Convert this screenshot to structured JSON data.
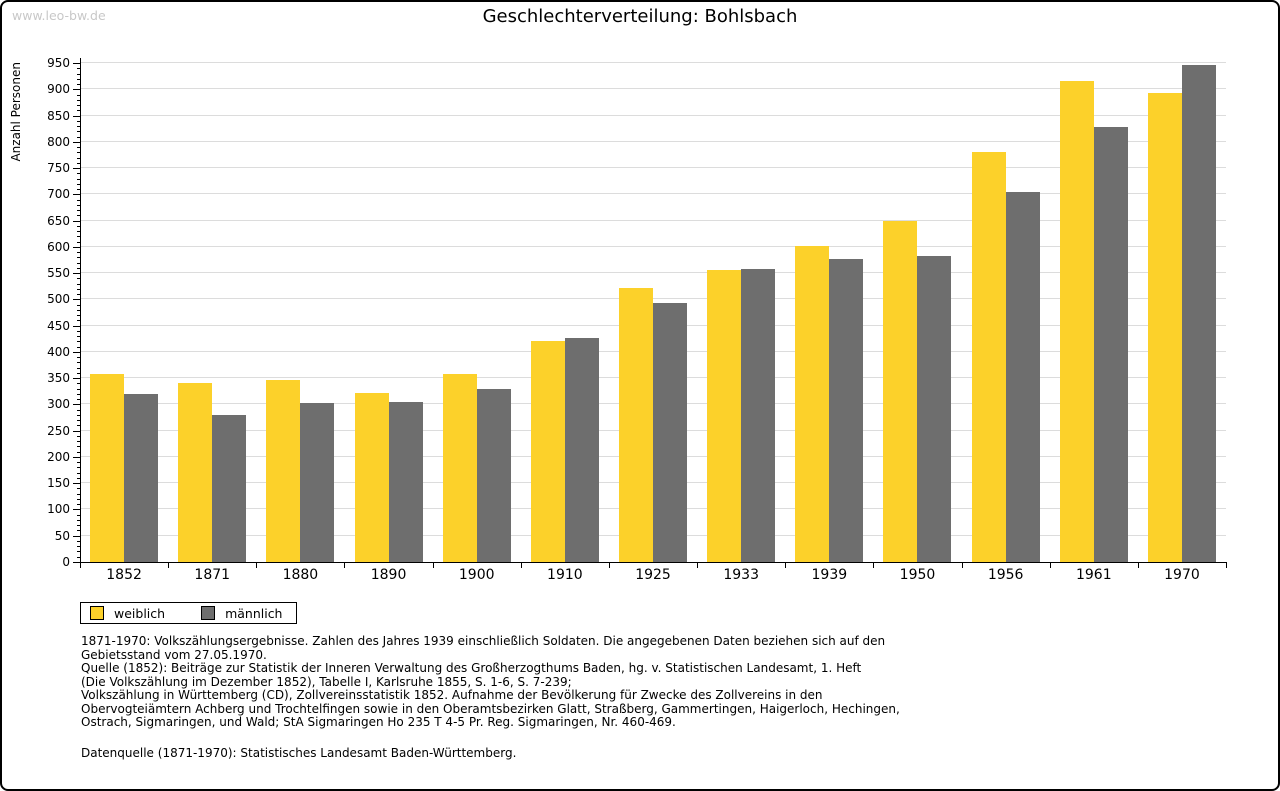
{
  "watermark": "www.leo-bw.de",
  "header": {
    "title": "Geschlechterverteilung: Bohlsbach"
  },
  "colors": {
    "weiblich": "#fcd12a",
    "maennlich": "#6e6e6e",
    "gridline": "#dcdcdc",
    "axis": "#000000",
    "watermark": "#c8c8c8"
  },
  "chart_data": {
    "type": "bar",
    "title": "Geschlechterverteilung: Bohlsbach",
    "xlabel": "",
    "ylabel": "Anzahl Personen",
    "ylim": [
      0,
      950
    ],
    "ytick_step": 50,
    "minor_tick_step": 10,
    "grid": true,
    "legend_position": "bottom-left",
    "categories": [
      "1852",
      "1871",
      "1880",
      "1890",
      "1900",
      "1910",
      "1925",
      "1933",
      "1939",
      "1950",
      "1956",
      "1961",
      "1970"
    ],
    "series": [
      {
        "name": "weiblich",
        "color": "#fcd12a",
        "values": [
          358,
          340,
          346,
          322,
          357,
          420,
          522,
          555,
          601,
          649,
          780,
          915,
          893
        ]
      },
      {
        "name": "männlich",
        "color": "#6e6e6e",
        "values": [
          319,
          280,
          302,
          305,
          330,
          426,
          494,
          558,
          577,
          583,
          705,
          829,
          946
        ]
      }
    ]
  },
  "notes": {
    "lines": [
      "1871-1970: Volkszählungsergebnisse. Zahlen des Jahres 1939 einschließlich Soldaten. Die angegebenen Daten beziehen sich auf den",
      "Gebietsstand vom 27.05.1970.",
      "Quelle (1852): Beiträge zur Statistik der Inneren Verwaltung des Großherzogthums Baden, hg. v. Statistischen Landesamt, 1. Heft",
      "(Die Volkszählung im Dezember 1852), Tabelle I, Karlsruhe 1855, S. 1-6, S. 7-239;",
      "Volkszählung in Württemberg (CD), Zollvereinsstatistik 1852. Aufnahme der Bevölkerung für Zwecke des Zollvereins in den",
      "Obervogteiämtern Achberg und Trochtelfingen sowie in den Oberamtsbezirken Glatt, Straßberg, Gammertingen, Haigerloch, Hechingen,",
      "Ostrach, Sigmaringen, und Wald; StA Sigmaringen Ho 235 T 4-5 Pr. Reg. Sigmaringen, Nr. 460-469."
    ],
    "datasource": "Datenquelle (1871-1970): Statistisches Landesamt Baden-Württemberg."
  }
}
